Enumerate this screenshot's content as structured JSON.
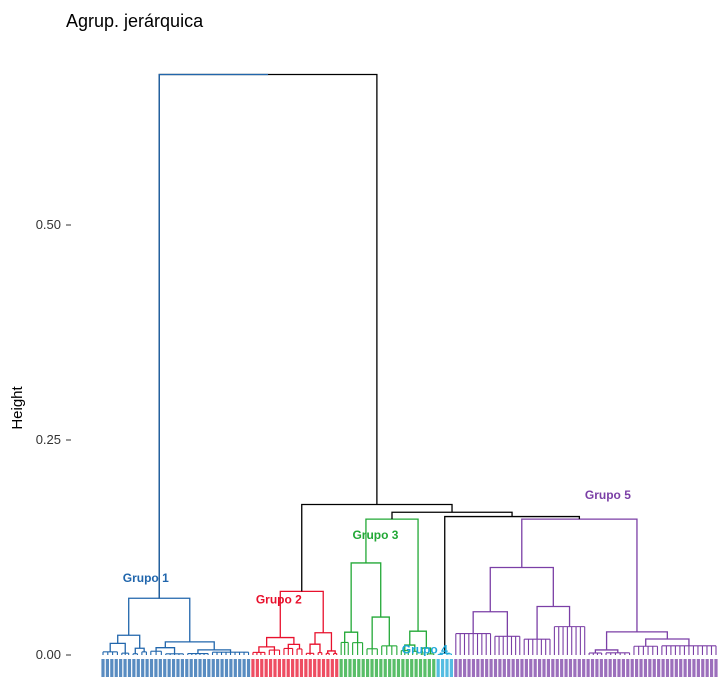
{
  "chart_data": {
    "type": "dendrogram",
    "title": "Agrup. jerárquica",
    "ylabel": "Height",
    "xlabel": "",
    "ylim": [
      0,
      0.7
    ],
    "yticks": [
      {
        "value": 0.0,
        "label": "0.00"
      },
      {
        "value": 0.25,
        "label": "0.25"
      },
      {
        "value": 0.5,
        "label": "0.50"
      }
    ],
    "merge_heights": {
      "root": 0.675,
      "groups_2_to_5": 0.175,
      "groups_3_to_5": 0.166,
      "groups_4_and_5": 0.161,
      "group_1": 0.066,
      "group_2": 0.074,
      "group_3": 0.158,
      "group_4": 0.002,
      "group_5": 0.158
    },
    "groups": [
      {
        "name": "Grupo 1",
        "color": "#2166ac",
        "leaf_count": 34,
        "height": 0.066
      },
      {
        "name": "Grupo 2",
        "color": "#e8112d",
        "leaf_count": 20,
        "height": 0.074
      },
      {
        "name": "Grupo 3",
        "color": "#22a836",
        "leaf_count": 22,
        "height": 0.158
      },
      {
        "name": "Grupo 4",
        "color": "#1ba7d8",
        "leaf_count": 4,
        "height": 0.002
      },
      {
        "name": "Grupo 5",
        "color": "#7b3fa6",
        "leaf_count": 60,
        "height": 0.158
      }
    ],
    "root_color": "#000000",
    "grid": false,
    "legend": "none"
  }
}
